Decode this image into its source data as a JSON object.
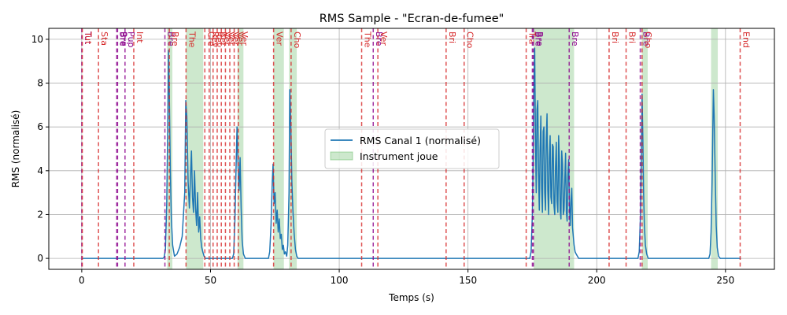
{
  "chart_data": {
    "type": "line",
    "title": "RMS Sample - \"Ecran-de-fumee\"",
    "xlabel": "Temps (s)",
    "ylabel": "RMS (normalisé)",
    "xlim": [
      -12.8,
      269
    ],
    "ylim": [
      -0.5,
      10.5
    ],
    "xticks": [
      0,
      50,
      100,
      150,
      200,
      250
    ],
    "yticks": [
      0,
      2,
      4,
      6,
      8,
      10
    ],
    "grid": true,
    "legend_position": "center",
    "series": [
      {
        "name": "RMS Canal 1 (normalisé)",
        "color": "#1f77b4",
        "points": [
          [
            0,
            0
          ],
          [
            31.5,
            0
          ],
          [
            32,
            0.05
          ],
          [
            32.5,
            0.4
          ],
          [
            33,
            2.5
          ],
          [
            33.4,
            6
          ],
          [
            33.7,
            9.5
          ],
          [
            34,
            7.5
          ],
          [
            34.4,
            4
          ],
          [
            34.8,
            1.8
          ],
          [
            35.3,
            0.6
          ],
          [
            36,
            0.1
          ],
          [
            37,
            0.2
          ],
          [
            38,
            0.5
          ],
          [
            39,
            1.0
          ],
          [
            40,
            3
          ],
          [
            40.4,
            7.2
          ],
          [
            40.8,
            6.5
          ],
          [
            41.3,
            3.5
          ],
          [
            41.8,
            2.3
          ],
          [
            42.2,
            3.6
          ],
          [
            42.6,
            4.9
          ],
          [
            43,
            2.8
          ],
          [
            43.4,
            2.1
          ],
          [
            43.8,
            4.0
          ],
          [
            44.2,
            2.3
          ],
          [
            44.6,
            1.5
          ],
          [
            45,
            3.0
          ],
          [
            45.4,
            1.2
          ],
          [
            45.8,
            1.9
          ],
          [
            46.2,
            0.9
          ],
          [
            46.6,
            0.5
          ],
          [
            47,
            0.3
          ],
          [
            47.5,
            0.1
          ],
          [
            48,
            0
          ],
          [
            58.5,
            0
          ],
          [
            59,
            0.2
          ],
          [
            59.5,
            1.8
          ],
          [
            60,
            4.5
          ],
          [
            60.3,
            6.0
          ],
          [
            60.7,
            4.2
          ],
          [
            61.1,
            3.1
          ],
          [
            61.5,
            4.6
          ],
          [
            61.9,
            2.3
          ],
          [
            62.3,
            0.8
          ],
          [
            62.8,
            0.2
          ],
          [
            63.5,
            0
          ],
          [
            72.5,
            0
          ],
          [
            73,
            0.3
          ],
          [
            73.5,
            1.5
          ],
          [
            74,
            3.5
          ],
          [
            74.3,
            4.3
          ],
          [
            74.7,
            2.5
          ],
          [
            75.1,
            3.0
          ],
          [
            75.5,
            1.6
          ],
          [
            75.9,
            2.2
          ],
          [
            76.3,
            1.2
          ],
          [
            76.7,
            1.8
          ],
          [
            77.1,
            0.9
          ],
          [
            77.5,
            1.1
          ],
          [
            77.9,
            0.4
          ],
          [
            78.3,
            0.6
          ],
          [
            78.7,
            0.2
          ],
          [
            79.1,
            0.3
          ],
          [
            79.6,
            0.1
          ],
          [
            80,
            0.6
          ],
          [
            80.5,
            3.0
          ],
          [
            80.8,
            7.7
          ],
          [
            81.2,
            6.0
          ],
          [
            81.6,
            3.5
          ],
          [
            82,
            2.2
          ],
          [
            82.5,
            1.1
          ],
          [
            83,
            0.4
          ],
          [
            83.5,
            0.1
          ],
          [
            84,
            0
          ],
          [
            174,
            0
          ],
          [
            174.5,
            0.3
          ],
          [
            175,
            2.0
          ],
          [
            175.3,
            4.5
          ],
          [
            175.6,
            8.0
          ],
          [
            175.9,
            9.6
          ],
          [
            176.2,
            5.5
          ],
          [
            176.5,
            3.0
          ],
          [
            176.8,
            6.8
          ],
          [
            177.1,
            7.2
          ],
          [
            177.4,
            3.8
          ],
          [
            177.7,
            2.2
          ],
          [
            178,
            5.0
          ],
          [
            178.3,
            6.5
          ],
          [
            178.6,
            3.2
          ],
          [
            178.9,
            2.1
          ],
          [
            179.2,
            5.8
          ],
          [
            179.5,
            6.0
          ],
          [
            179.8,
            3.0
          ],
          [
            180.1,
            2.2
          ],
          [
            180.4,
            5.5
          ],
          [
            180.7,
            6.6
          ],
          [
            181,
            3.1
          ],
          [
            181.3,
            2.0
          ],
          [
            181.6,
            4.6
          ],
          [
            181.9,
            5.6
          ],
          [
            182.2,
            2.8
          ],
          [
            182.5,
            2.5
          ],
          [
            182.8,
            5.2
          ],
          [
            183.1,
            5.1
          ],
          [
            183.4,
            2.4
          ],
          [
            183.7,
            2.0
          ],
          [
            184,
            4.2
          ],
          [
            184.3,
            5.3
          ],
          [
            184.6,
            2.6
          ],
          [
            184.9,
            2.1
          ],
          [
            185.2,
            5.6
          ],
          [
            185.5,
            4.5
          ],
          [
            185.8,
            2.2
          ],
          [
            186.1,
            1.8
          ],
          [
            186.4,
            4.9
          ],
          [
            186.7,
            4.3
          ],
          [
            187,
            2.0
          ],
          [
            187.3,
            2.2
          ],
          [
            187.6,
            3.6
          ],
          [
            187.9,
            4.8
          ],
          [
            188.2,
            2.1
          ],
          [
            188.5,
            1.7
          ],
          [
            188.8,
            3.8
          ],
          [
            189.1,
            4.5
          ],
          [
            189.4,
            2.4
          ],
          [
            189.7,
            1.5
          ],
          [
            190,
            2.6
          ],
          [
            190.3,
            3.2
          ],
          [
            190.6,
            1.4
          ],
          [
            190.9,
            1.0
          ],
          [
            191.2,
            0.6
          ],
          [
            191.6,
            0.3
          ],
          [
            192,
            0.2
          ],
          [
            193,
            0
          ],
          [
            216,
            0
          ],
          [
            216.5,
            0.3
          ],
          [
            217,
            2.0
          ],
          [
            217.3,
            4.5
          ],
          [
            217.6,
            7.5
          ],
          [
            217.9,
            5.5
          ],
          [
            218.2,
            3.0
          ],
          [
            218.5,
            1.5
          ],
          [
            218.9,
            0.6
          ],
          [
            219.4,
            0.2
          ],
          [
            220,
            0
          ],
          [
            243.5,
            0
          ],
          [
            244,
            0.2
          ],
          [
            244.4,
            1.2
          ],
          [
            244.8,
            3.5
          ],
          [
            245.1,
            6.0
          ],
          [
            245.3,
            7.7
          ],
          [
            245.6,
            6.5
          ],
          [
            246,
            3.8
          ],
          [
            246.4,
            1.5
          ],
          [
            246.8,
            0.5
          ],
          [
            247.3,
            0.1
          ],
          [
            248,
            0
          ],
          [
            256,
            0
          ]
        ]
      }
    ],
    "shaded_regions": {
      "name": "Instrument joue",
      "color": "#2ca02c",
      "opacity": 0.24,
      "spans": [
        [
          33.2,
          35.2
        ],
        [
          40.5,
          47.2
        ],
        [
          60.5,
          62.8
        ],
        [
          74.5,
          78.5
        ],
        [
          80.5,
          83.5
        ],
        [
          175.5,
          191.2
        ],
        [
          217.5,
          219.8
        ],
        [
          244.4,
          247
        ]
      ]
    },
    "markers": [
      {
        "x": 0.0,
        "label": "Tut",
        "color": "#8b008b"
      },
      {
        "x": 0.2,
        "label": "Tut",
        "color": "#d62728"
      },
      {
        "x": 6.5,
        "label": "Sta",
        "color": "#d62728"
      },
      {
        "x": 13.6,
        "label": "Bre",
        "color": "#8b008b"
      },
      {
        "x": 13.9,
        "label": "Bre",
        "color": "#8b008b"
      },
      {
        "x": 16.8,
        "label": "Pup",
        "color": "#8b008b"
      },
      {
        "x": 20.2,
        "label": "Int",
        "color": "#d62728"
      },
      {
        "x": 32.3,
        "label": "Bre",
        "color": "#8b008b"
      },
      {
        "x": 34.0,
        "label": "Bre",
        "color": "#d62728"
      },
      {
        "x": 40.5,
        "label": "The",
        "color": "#d62728"
      },
      {
        "x": 47.8,
        "label": "Cre",
        "color": "#d62728"
      },
      {
        "x": 49.5,
        "label": "Rev",
        "color": "#d62728"
      },
      {
        "x": 51.0,
        "label": "Rev",
        "color": "#d62728"
      },
      {
        "x": 52.6,
        "label": "Ber",
        "color": "#d62728"
      },
      {
        "x": 54.2,
        "label": "Ver",
        "color": "#d62728"
      },
      {
        "x": 55.8,
        "label": "Ver",
        "color": "#d62728"
      },
      {
        "x": 57.5,
        "label": "Ver",
        "color": "#d62728"
      },
      {
        "x": 59.2,
        "label": "Ver",
        "color": "#d62728"
      },
      {
        "x": 60.8,
        "label": "Ver",
        "color": "#d62728"
      },
      {
        "x": 74.5,
        "label": "Ver",
        "color": "#d62728"
      },
      {
        "x": 81.3,
        "label": "Cho",
        "color": "#d62728"
      },
      {
        "x": 108.7,
        "label": "The",
        "color": "#d62728"
      },
      {
        "x": 113.2,
        "label": "Bre",
        "color": "#8b008b"
      },
      {
        "x": 115.0,
        "label": "Ver",
        "color": "#d62728"
      },
      {
        "x": 141.5,
        "label": "Bri",
        "color": "#d62728"
      },
      {
        "x": 148.5,
        "label": "Cho",
        "color": "#d62728"
      },
      {
        "x": 172.6,
        "label": "Tra",
        "color": "#d62728"
      },
      {
        "x": 175.0,
        "label": "Bre",
        "color": "#8b008b"
      },
      {
        "x": 175.4,
        "label": "Bre",
        "color": "#8b008b"
      },
      {
        "x": 189.3,
        "label": "Bre",
        "color": "#8b008b"
      },
      {
        "x": 204.8,
        "label": "Bri",
        "color": "#d62728"
      },
      {
        "x": 211.4,
        "label": "Bri",
        "color": "#d62728"
      },
      {
        "x": 216.9,
        "label": "Bre",
        "color": "#8b008b"
      },
      {
        "x": 217.6,
        "label": "Cho",
        "color": "#d62728"
      },
      {
        "x": 255.7,
        "label": "End",
        "color": "#d62728"
      }
    ]
  }
}
